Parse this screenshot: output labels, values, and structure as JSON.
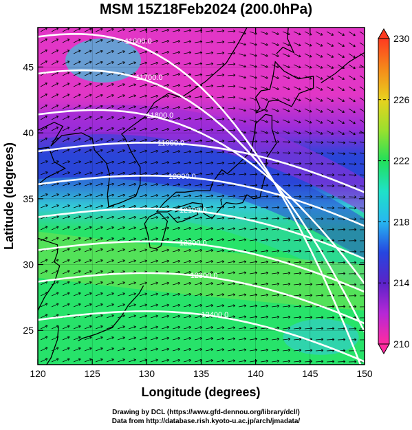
{
  "title": "MSM 15Z18Feb2024 (200.0hPa)",
  "map": {
    "xlabel": "Longitude (degrees)",
    "ylabel": "Latitude  (degrees)",
    "lon_range": [
      120,
      150
    ],
    "lat_range": [
      22.4,
      48.0
    ],
    "x_ticks": [
      "120",
      "125",
      "130",
      "135",
      "140",
      "145",
      "150"
    ],
    "y_ticks": [
      "25",
      "30",
      "35",
      "40",
      "45"
    ],
    "field_colors": {
      "north_magenta": "#e236c6",
      "purple": "#9a2cd9",
      "blue": "#2a45d8",
      "cyan": "#35c9d8",
      "green": "#27e36a",
      "yellow_green": "#a6e03a"
    }
  },
  "colorbar": {
    "ticks": [
      "230",
      "226",
      "222",
      "218",
      "214",
      "210"
    ],
    "range": [
      210,
      230
    ],
    "colors": [
      "#ff3a20",
      "#f58a1a",
      "#e8d21e",
      "#9ae02e",
      "#22e05a",
      "#1fe1c8",
      "#27b7f0",
      "#2646e0",
      "#5a23c8",
      "#b628d6",
      "#ff2ba0"
    ]
  },
  "contours": [
    {
      "label": "11600.0",
      "lat": 47.3
    },
    {
      "label": "11700.0",
      "lat": 44.5
    },
    {
      "label": "11800.0",
      "lat": 41.4
    },
    {
      "label": "11900.0",
      "lat": 38.6
    },
    {
      "label": "12000.0",
      "lat": 36.1
    },
    {
      "label": "12100.0",
      "lat": 33.6
    },
    {
      "label": "12200.0",
      "lat": 31.1
    },
    {
      "label": "12300.0",
      "lat": 28.7
    },
    {
      "label": "12400.0",
      "lat": 25.8
    }
  ],
  "credit": {
    "line1": "Drawing by DCL (https://www.gfd-dennou.org/library/dcl/)",
    "line2": "Data from http://database.rish.kyoto-u.ac.jp/arch/jmadata/"
  }
}
